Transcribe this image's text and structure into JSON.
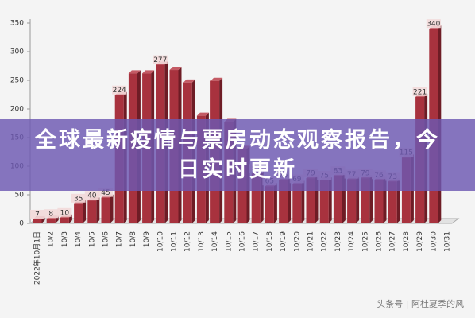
{
  "chart_data": {
    "type": "bar",
    "categories": [
      "2022年10月1日",
      "10/2",
      "10/3",
      "10/4",
      "10/5",
      "10/6",
      "10/7",
      "10/8",
      "10/9",
      "10/10",
      "10/11",
      "10/12",
      "10/13",
      "10/14",
      "10/15",
      "10/16",
      "10/17",
      "10/18",
      "10/19",
      "10/20",
      "10/21",
      "10/22",
      "10/23",
      "10/24",
      "10/25",
      "10/26",
      "10/27",
      "10/28",
      "10/29",
      "10/30",
      "10/31"
    ],
    "values": [
      7,
      8,
      10,
      35,
      40,
      45,
      224,
      262,
      262,
      277,
      268,
      246,
      188,
      249,
      177,
      130,
      87,
      65,
      76,
      69,
      79,
      75,
      83,
      77,
      79,
      76,
      73,
      115,
      221,
      340,
      null
    ],
    "value_labels": [
      "7",
      "8",
      "10",
      "35",
      "40",
      "45",
      "224",
      null,
      null,
      "277",
      null,
      null,
      null,
      null,
      null,
      null,
      "87",
      "65",
      "76",
      "69",
      "79",
      "75",
      "83",
      "77",
      "79",
      "76",
      "73",
      "115",
      "221",
      "340",
      null
    ],
    "color": "#a8323e",
    "ylim": [
      0,
      350
    ],
    "yticks": [
      0,
      50,
      100,
      150,
      200,
      250,
      300,
      350
    ],
    "grid": false
  },
  "banner": {
    "title": "全球最新疫情与票房动态观察报告，今日实时更新"
  },
  "watermark": "头条号 | 阿杜夏季的风"
}
